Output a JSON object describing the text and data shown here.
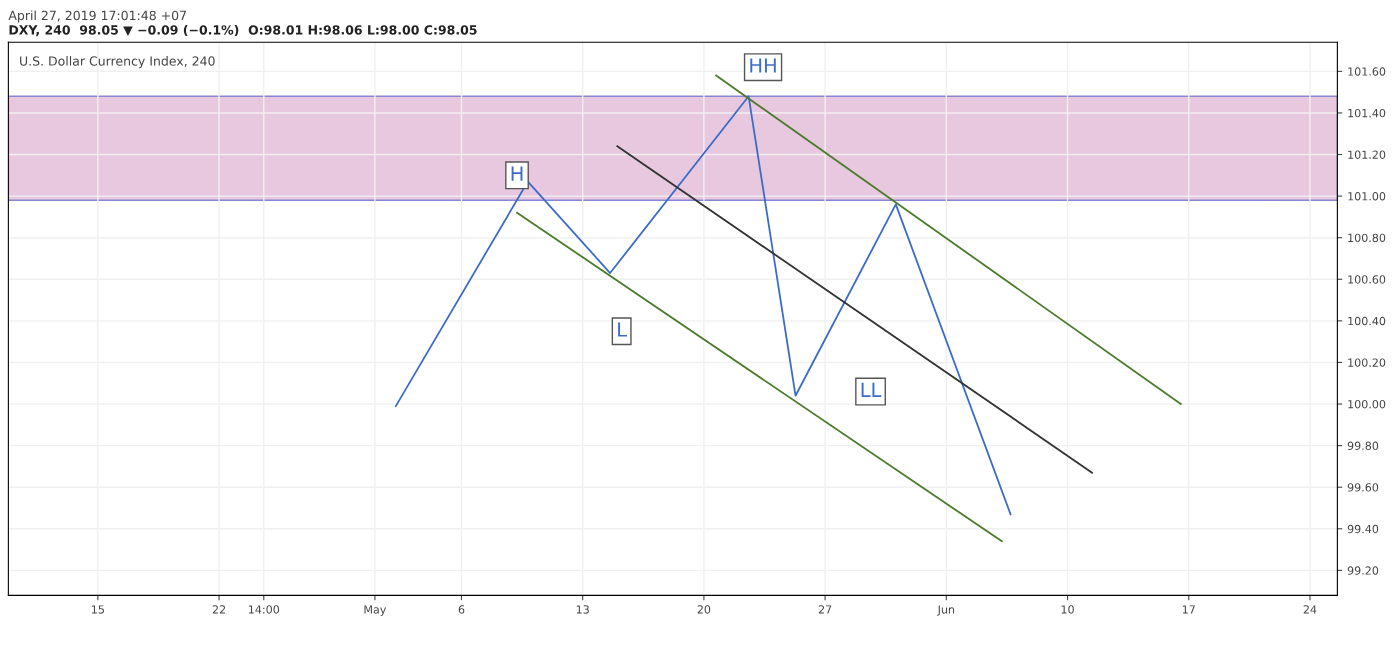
{
  "chart_data": {
    "type": "line",
    "title": "U.S. Dollar Currency Index, 240",
    "subtitle": "April 27, 2019 17:01:48 +07",
    "annotations": [
      "DXY, 240  98.05 ▼ −0.09 (−0.1%)  O:98.01 H:98.06 L:98.00 C:98.05",
      {
        "text": "H",
        "x": "2019-05-09T05:00",
        "y": 101.1
      },
      {
        "text": "HH",
        "x": "2019-05-23T10:00",
        "y": 101.62
      },
      {
        "text": "L",
        "x": "2019-05-15T06:00",
        "y": 100.35
      },
      {
        "text": "LL",
        "x": "2019-05-29T15:00",
        "y": 100.06
      }
    ],
    "series": [
      {
        "color": "#3b6cc8",
        "x": [
          "2019-05-02T05:00",
          "2019-05-09T20:00",
          "2019-05-14T14:00",
          "2019-05-22T14:00",
          "2019-05-25T07:00",
          "2019-05-31T02:00",
          "2019-06-06T17:00"
        ],
        "values": [
          99.99,
          101.07,
          100.63,
          101.48,
          100.04,
          100.96,
          99.47
        ]
      },
      {
        "color": "#4a7a2a",
        "x": [
          "2019-05-20T17:00",
          "2019-06-16T13:00"
        ],
        "values": [
          101.58,
          100.0
        ]
      },
      {
        "color": "#4a7a2a",
        "x": [
          "2019-05-09T05:00",
          "2019-06-06T05:00"
        ],
        "values": [
          100.92,
          99.34
        ]
      },
      {
        "color": "#333333",
        "x": [
          "2019-05-15T00:00",
          "2019-06-11T10:00"
        ],
        "values": [
          101.24,
          99.67
        ]
      }
    ],
    "bands": [
      {
        "axis": "y",
        "from": 100.98,
        "to": 101.48,
        "color": "#e6c3dc"
      }
    ],
    "xlim": [
      "2019-04-09T20:00",
      "2019-06-25T14:00"
    ],
    "xticks": [
      {
        "value": "2019-04-15",
        "label": "15"
      },
      {
        "value": "2019-04-22",
        "label": "22"
      },
      {
        "value": "2019-04-24T14:00",
        "label": "14:00"
      },
      {
        "value": "2019-05-01",
        "label": "May"
      },
      {
        "value": "2019-05-06",
        "label": "6"
      },
      {
        "value": "2019-05-13",
        "label": "13"
      },
      {
        "value": "2019-05-20",
        "label": "20"
      },
      {
        "value": "2019-05-27",
        "label": "27"
      },
      {
        "value": "2019-06-03",
        "label": "Jun"
      },
      {
        "value": "2019-06-10",
        "label": "10"
      },
      {
        "value": "2019-06-17",
        "label": "17"
      },
      {
        "value": "2019-06-24",
        "label": "24"
      }
    ],
    "ylim": [
      99.08,
      101.74
    ],
    "yticks": [
      {
        "value": 99.2,
        "label": "99.20"
      },
      {
        "value": 99.4,
        "label": "99.40"
      },
      {
        "value": 99.6,
        "label": "99.60"
      },
      {
        "value": 99.8,
        "label": "99.80"
      },
      {
        "value": 100.0,
        "label": "100.00"
      },
      {
        "value": 100.2,
        "label": "100.20"
      },
      {
        "value": 100.4,
        "label": "100.40"
      },
      {
        "value": 100.6,
        "label": "100.60"
      },
      {
        "value": 100.8,
        "label": "100.80"
      },
      {
        "value": 101.0,
        "label": "101.00"
      },
      {
        "value": 101.2,
        "label": "101.20"
      },
      {
        "value": 101.4,
        "label": "101.40"
      },
      {
        "value": 101.6,
        "label": "101.60"
      }
    ],
    "grid": true,
    "marker": "none",
    "line_style": "solid"
  }
}
